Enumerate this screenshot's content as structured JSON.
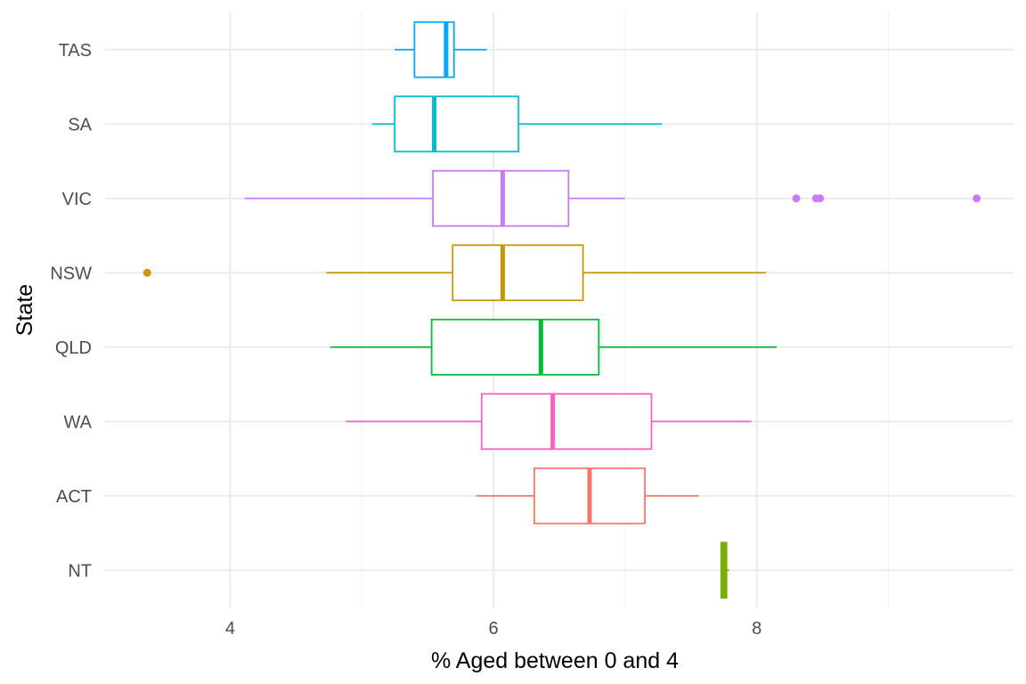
{
  "chart_data": {
    "type": "boxplot",
    "orientation": "horizontal",
    "title": "",
    "xlabel": "% Aged between 0 and 4",
    "ylabel": "State",
    "xlim": [
      3.05,
      9.95
    ],
    "x_ticks": [
      4,
      6,
      8
    ],
    "x_minor_ticks": [
      3,
      5,
      7,
      9
    ],
    "categories": [
      "NT",
      "ACT",
      "WA",
      "QLD",
      "NSW",
      "VIC",
      "SA",
      "TAS"
    ],
    "grid": true,
    "legend": "none",
    "series": [
      {
        "name": "NT",
        "color": "#7CAE00",
        "whisker_low": 7.73,
        "q1": 7.73,
        "median": 7.75,
        "q3": 7.77,
        "whisker_high": 7.79,
        "outliers": []
      },
      {
        "name": "ACT",
        "color": "#F8766D",
        "whisker_low": 5.87,
        "q1": 6.31,
        "median": 6.73,
        "q3": 7.15,
        "whisker_high": 7.56,
        "outliers": []
      },
      {
        "name": "WA",
        "color": "#FF61C3",
        "whisker_low": 4.88,
        "q1": 5.91,
        "median": 6.45,
        "q3": 7.2,
        "whisker_high": 7.96,
        "outliers": []
      },
      {
        "name": "QLD",
        "color": "#00BA38",
        "whisker_low": 4.76,
        "q1": 5.53,
        "median": 6.36,
        "q3": 6.8,
        "whisker_high": 8.15,
        "outliers": []
      },
      {
        "name": "NSW",
        "color": "#C49A00",
        "whisker_low": 4.73,
        "q1": 5.69,
        "median": 6.07,
        "q3": 6.68,
        "whisker_high": 8.07,
        "outliers": [
          3.37
        ]
      },
      {
        "name": "VIC",
        "color": "#C77CFF",
        "whisker_low": 4.11,
        "q1": 5.54,
        "median": 6.07,
        "q3": 6.57,
        "whisker_high": 7.0,
        "outliers": [
          8.3,
          8.45,
          8.48,
          9.67
        ]
      },
      {
        "name": "SA",
        "color": "#00BFC4",
        "whisker_low": 5.08,
        "q1": 5.25,
        "median": 5.55,
        "q3": 6.19,
        "whisker_high": 7.28,
        "outliers": []
      },
      {
        "name": "TAS",
        "color": "#00A9FF",
        "whisker_low": 5.25,
        "q1": 5.4,
        "median": 5.64,
        "q3": 5.7,
        "whisker_high": 5.95,
        "outliers": []
      }
    ]
  }
}
